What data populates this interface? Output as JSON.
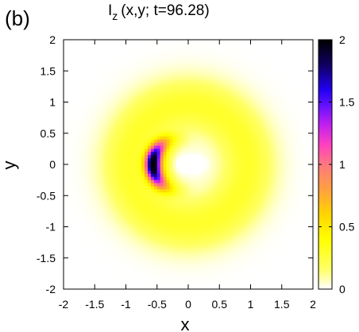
{
  "chart_data": {
    "type": "heatmap",
    "panel_label": "(b)",
    "title_main": "I",
    "title_sub": "z",
    "title_rest": "(x,y;  t=96.28)",
    "xlabel": "x",
    "ylabel": "y",
    "xlim": [
      -2,
      2
    ],
    "ylim": [
      -2,
      2
    ],
    "x_ticks": [
      -2,
      -1.5,
      -1,
      -0.5,
      0,
      0.5,
      1,
      1.5,
      2
    ],
    "x_tick_labels": [
      "-2",
      "-1.5",
      "-1",
      "-0.5",
      "0",
      "0.5",
      "1",
      "1.5",
      "2"
    ],
    "y_ticks": [
      -2,
      -1.5,
      -1,
      -0.5,
      0,
      0.5,
      1,
      1.5,
      2
    ],
    "y_tick_labels": [
      "-2",
      "-1.5",
      "-1",
      "-0.5",
      "0",
      "0.5",
      "1",
      "1.5",
      "2"
    ],
    "colorbar": {
      "range": [
        0,
        2
      ],
      "ticks": [
        0,
        0.5,
        1,
        1.5,
        2
      ],
      "tick_labels": [
        "0",
        "0.5",
        "1",
        "1.5",
        "2"
      ],
      "colormap": [
        [
          0.0,
          "#ffffff"
        ],
        [
          0.08,
          "#ffff66"
        ],
        [
          0.2,
          "#ffff00"
        ],
        [
          0.3,
          "#ffd400"
        ],
        [
          0.4,
          "#ffa040"
        ],
        [
          0.5,
          "#ff7880"
        ],
        [
          0.58,
          "#ff40c0"
        ],
        [
          0.66,
          "#c020f0"
        ],
        [
          0.74,
          "#6010ff"
        ],
        [
          0.8,
          "#2000f0"
        ],
        [
          0.9,
          "#100060"
        ],
        [
          1.0,
          "#000000"
        ]
      ]
    },
    "field_description": {
      "ring": {
        "amplitude": 0.3,
        "radius": 0.95,
        "width": 0.45
      },
      "crescent": {
        "amplitude": 1.75,
        "center": [
          -0.15,
          0.0
        ],
        "radius": 0.42,
        "width": 0.12,
        "angle_center_deg": 180,
        "angle_width_deg": 55
      },
      "center_dip": {
        "amplitude": -0.28,
        "center": [
          0.05,
          0.0
        ],
        "sx": 0.12,
        "sy": 0.07
      }
    }
  }
}
